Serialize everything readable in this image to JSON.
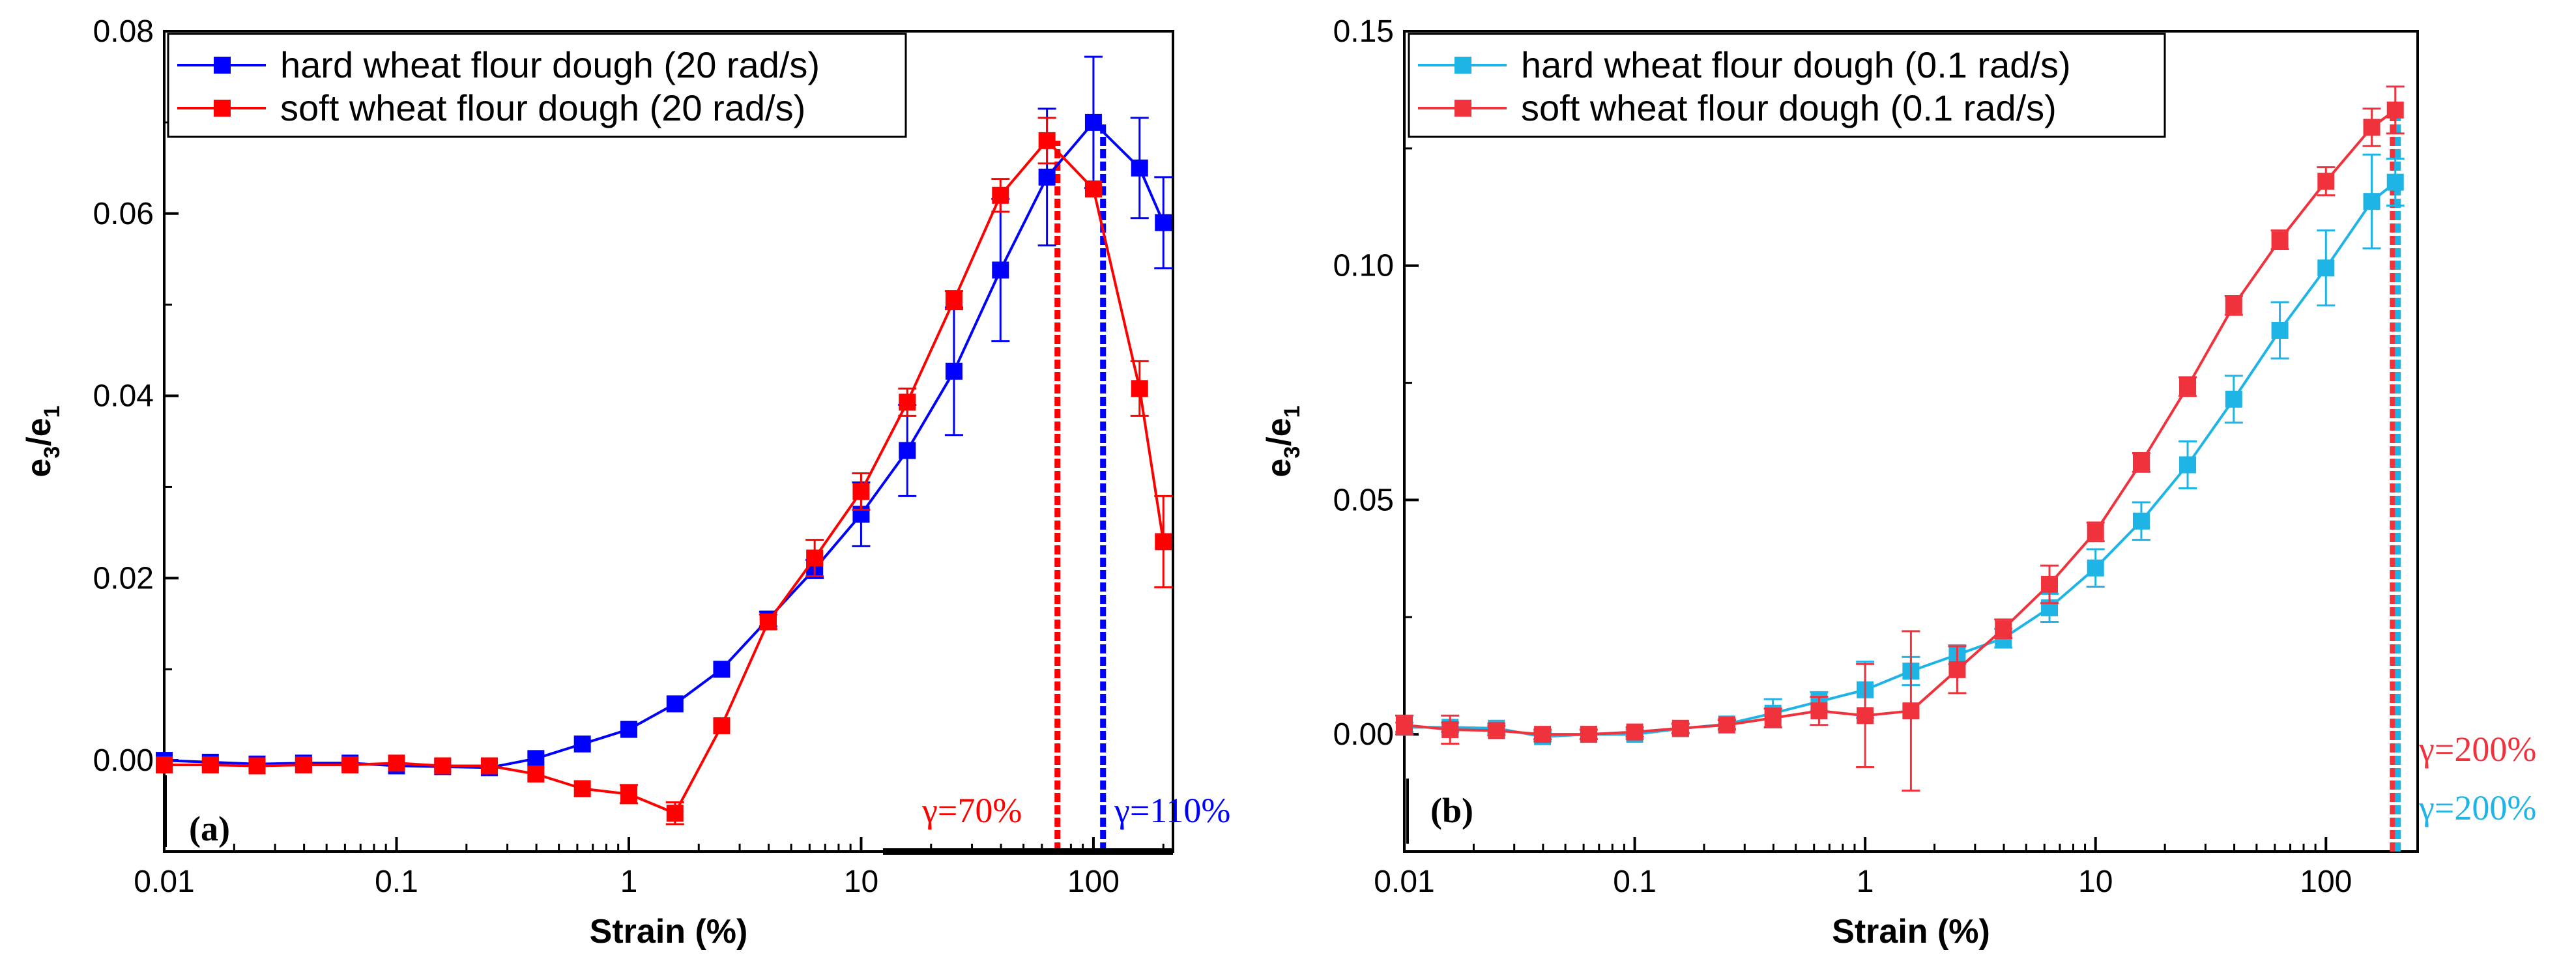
{
  "colors": {
    "hard_20": "#0000ff",
    "soft_20": "#ff0000",
    "hard_01": "#1eb4e6",
    "soft_01": "#f0323c",
    "frame": "#000000"
  },
  "chart_data": [
    {
      "type": "line",
      "panel_label": "(a)",
      "xlabel": "Strain (%)",
      "ylabel": "e",
      "ylabel_sub1": "3",
      "ylabel_slash": "/e",
      "ylabel_sub2": "1",
      "x_scale": "log",
      "xlim": [
        0.01,
        220
      ],
      "ylim": [
        -0.01,
        0.08
      ],
      "x_ticks": [
        0.01,
        0.1,
        1,
        10,
        100
      ],
      "x_tick_labels": [
        "0.01",
        "0.1",
        "1",
        "10",
        "100"
      ],
      "y_ticks": [
        0.0,
        0.02,
        0.04,
        0.06,
        0.08
      ],
      "y_tick_labels": [
        "0.00",
        "0.02",
        "0.04",
        "0.06",
        "0.08"
      ],
      "legend_position": "top-left",
      "series": [
        {
          "name": "hard wheat flour dough (20 rad/s)",
          "color_key": "hard_20",
          "x": [
            0.01,
            0.0158,
            0.0251,
            0.0398,
            0.0631,
            0.1,
            0.158,
            0.251,
            0.398,
            0.631,
            1.0,
            1.58,
            2.51,
            3.98,
            6.31,
            10.0,
            15.8,
            25.1,
            39.8,
            63.1,
            100,
            158,
            200
          ],
          "y": [
            0.0,
            -0.0002,
            -0.0004,
            -0.0003,
            -0.0003,
            -0.0006,
            -0.0007,
            -0.0008,
            0.0002,
            0.0018,
            0.0034,
            0.0062,
            0.01,
            0.0155,
            0.021,
            0.027,
            0.034,
            0.0427,
            0.0538,
            0.064,
            0.07,
            0.065,
            0.059
          ],
          "err": [
            0,
            0,
            0,
            0,
            0,
            0,
            0,
            0,
            0,
            0,
            0,
            0,
            0,
            0.0008,
            0.001,
            0.0035,
            0.005,
            0.007,
            0.0078,
            0.0075,
            0.0072,
            0.0055,
            0.005
          ]
        },
        {
          "name": "soft wheat flour dough (20 rad/s)",
          "color_key": "soft_20",
          "x": [
            0.01,
            0.0158,
            0.0251,
            0.0398,
            0.0631,
            0.1,
            0.158,
            0.251,
            0.398,
            0.631,
            1.0,
            1.58,
            2.51,
            3.98,
            6.31,
            10.0,
            15.8,
            25.1,
            39.8,
            63.1,
            100,
            158,
            200
          ],
          "y": [
            -0.0005,
            -0.0005,
            -0.0006,
            -0.0005,
            -0.0005,
            -0.0003,
            -0.0006,
            -0.0006,
            -0.0015,
            -0.0031,
            -0.0037,
            -0.0058,
            0.0038,
            0.0152,
            0.0222,
            0.0295,
            0.0393,
            0.0505,
            0.062,
            0.068,
            0.0627,
            0.0408,
            0.024
          ],
          "err": [
            0,
            0,
            0,
            0,
            0,
            0,
            0,
            0,
            0,
            0,
            0.001,
            0.0012,
            0,
            0.0008,
            0.002,
            0.002,
            0.0015,
            0.001,
            0.0018,
            0.0025,
            0,
            0.003,
            0.005
          ]
        }
      ],
      "vlines": [
        {
          "x": 70,
          "color_key": "soft_20",
          "label": "γ=70%"
        },
        {
          "x": 110,
          "color_key": "hard_20",
          "label": "γ=110%"
        }
      ]
    },
    {
      "type": "line",
      "panel_label": "(b)",
      "xlabel": "Strain (%)",
      "ylabel": "e",
      "ylabel_sub1": "3",
      "ylabel_slash": "/e",
      "ylabel_sub2": "1",
      "x_scale": "log",
      "xlim": [
        0.01,
        250
      ],
      "ylim": [
        -0.025,
        0.15
      ],
      "x_ticks": [
        0.01,
        0.1,
        1,
        10,
        100
      ],
      "x_tick_labels": [
        "0.01",
        "0.1",
        "1",
        "10",
        "100"
      ],
      "y_ticks": [
        0.0,
        0.05,
        0.1,
        0.15
      ],
      "y_tick_labels": [
        "0.00",
        "0.05",
        "0.10",
        "0.15"
      ],
      "legend_position": "top-left",
      "series": [
        {
          "name": "hard wheat flour dough (0.1 rad/s)",
          "color_key": "hard_01",
          "x": [
            0.01,
            0.0158,
            0.0251,
            0.0398,
            0.0631,
            0.1,
            0.158,
            0.251,
            0.398,
            0.631,
            1.0,
            1.58,
            2.51,
            3.98,
            6.31,
            10.0,
            15.8,
            25.1,
            39.8,
            63.1,
            100,
            158,
            200
          ],
          "y": [
            0.0015,
            0.0015,
            0.0013,
            -0.0005,
            0.0,
            0.0,
            0.0012,
            0.0022,
            0.0045,
            0.007,
            0.0095,
            0.0135,
            0.017,
            0.0205,
            0.027,
            0.0355,
            0.0455,
            0.0575,
            0.0715,
            0.0862,
            0.0995,
            0.1137,
            0.1178
          ],
          "err": [
            0.001,
            0.001,
            0.001,
            0.001,
            0.001,
            0.001,
            0.001,
            0.001,
            0.003,
            0.002,
            0.006,
            0.003,
            0.002,
            0.002,
            0.003,
            0.004,
            0.004,
            0.005,
            0.005,
            0.006,
            0.008,
            0.01,
            0.005
          ]
        },
        {
          "name": "soft wheat flour dough (0.1 rad/s)",
          "color_key": "soft_01",
          "x": [
            0.01,
            0.0158,
            0.0251,
            0.0398,
            0.0631,
            0.1,
            0.158,
            0.251,
            0.398,
            0.631,
            1.0,
            1.58,
            2.51,
            3.98,
            6.31,
            10.0,
            15.8,
            25.1,
            39.8,
            63.1,
            100,
            158,
            200
          ],
          "y": [
            0.002,
            0.001,
            0.0008,
            0.0,
            0.0,
            0.0005,
            0.0013,
            0.002,
            0.0035,
            0.005,
            0.004,
            0.005,
            0.0138,
            0.0225,
            0.032,
            0.0432,
            0.058,
            0.0742,
            0.0915,
            0.1055,
            0.118,
            0.1295,
            0.1332
          ],
          "err": [
            0.002,
            0.003,
            0.001,
            0.001,
            0.001,
            0.001,
            0.001,
            0.001,
            0.002,
            0.003,
            0.011,
            0.017,
            0.005,
            0.002,
            0.004,
            0.002,
            0.002,
            0.002,
            0.002,
            0.002,
            0.003,
            0.004,
            0.005
          ]
        }
      ],
      "vlines": [
        {
          "x": 200,
          "color_key": "soft_01",
          "label": "γ=200%"
        },
        {
          "x": 200,
          "color_key": "hard_01",
          "label": "γ=200%"
        }
      ]
    }
  ]
}
